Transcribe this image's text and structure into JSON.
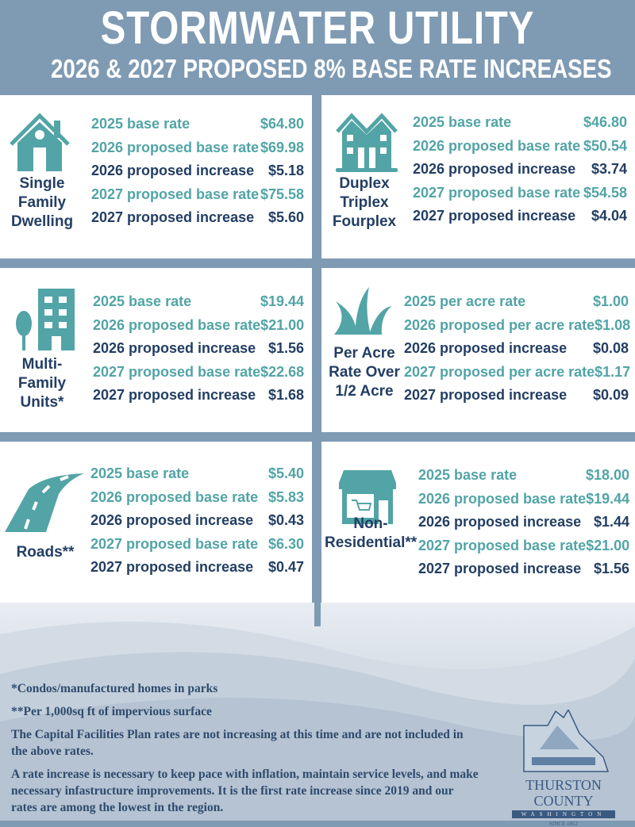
{
  "header": {
    "title": "STORMWATER UTILITY",
    "subtitle": "2026 & 2027 PROPOSED 8% BASE RATE INCREASES"
  },
  "colors": {
    "header": "#7f9ab3",
    "teal": "#52a4a6",
    "navy": "#233e63"
  },
  "panels": [
    {
      "label": "Single Family Dwelling",
      "icon": "house-icon",
      "rows": [
        [
          "2025 base rate",
          "$64.80"
        ],
        [
          "2026 proposed base rate",
          "$69.98"
        ],
        [
          "2026 proposed increase",
          "$5.18"
        ],
        [
          "2027 proposed base rate",
          "$75.58"
        ],
        [
          "2027 proposed increase",
          "$5.60"
        ]
      ]
    },
    {
      "label": "Duplex Triplex Fourplex",
      "icon": "duplex-icon",
      "rows": [
        [
          "2025 base rate",
          "$46.80"
        ],
        [
          "2026 proposed base rate",
          "$50.54"
        ],
        [
          "2026 proposed increase",
          "$3.74"
        ],
        [
          "2027 proposed base rate",
          "$54.58"
        ],
        [
          "2027 proposed increase",
          "$4.04"
        ]
      ]
    },
    {
      "label": "Multi-Family Units*",
      "icon": "apartment-building-icon",
      "rows": [
        [
          "2025 base rate",
          "$19.44"
        ],
        [
          "2026 proposed base rate",
          "$21.00"
        ],
        [
          "2026 proposed increase",
          "$1.56"
        ],
        [
          "2027 proposed base rate",
          "$22.68"
        ],
        [
          "2027 proposed increase",
          "$1.68"
        ]
      ]
    },
    {
      "label": "Per Acre Rate Over 1/2 Acre",
      "icon": "grass-icon",
      "rows": [
        [
          "2025 per acre rate",
          "$1.00"
        ],
        [
          "2026 proposed per acre rate",
          "$1.08"
        ],
        [
          "2026 proposed increase",
          "$0.08"
        ],
        [
          "2027 proposed per acre rate",
          "$1.17"
        ],
        [
          "2027 proposed increase",
          "$0.09"
        ]
      ]
    },
    {
      "label": "Roads**",
      "icon": "road-icon",
      "rows": [
        [
          "2025 base rate",
          "$5.40"
        ],
        [
          "2026 proposed base rate",
          "$5.83"
        ],
        [
          "2026 proposed increase",
          "$0.43"
        ],
        [
          "2027 proposed base rate",
          "$6.30"
        ],
        [
          "2027 proposed increase",
          "$0.47"
        ]
      ]
    },
    {
      "label": "Non-Residential**",
      "icon": "storefront-icon",
      "rows": [
        [
          "2025 base rate",
          "$18.00"
        ],
        [
          "2026 proposed base rate",
          "$19.44"
        ],
        [
          "2026 proposed increase",
          "$1.44"
        ],
        [
          "2027 proposed base rate",
          "$21.00"
        ],
        [
          "2027 proposed increase",
          "$1.56"
        ]
      ]
    }
  ],
  "notes": [
    "*Condos/manufactured homes in parks",
    "**Per 1,000sq ft of impervious surface",
    "The Capital Facilities Plan rates are not increasing at this time and are not included in the above rates.",
    "A rate increase is necessary to keep pace with inflation, maintain service levels, and make necessary infastructure improvements.  It is the first rate increase since 2019 and our rates are among the lowest in the region."
  ],
  "logo": {
    "name": "THURSTON COUNTY",
    "state": "WASHINGTON",
    "since": "SINCE 1852"
  }
}
